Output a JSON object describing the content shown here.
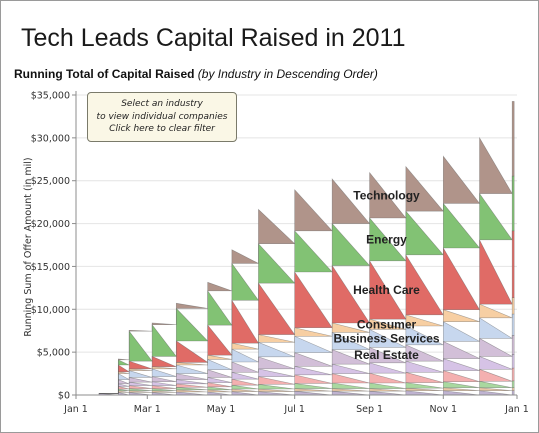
{
  "title": "Tech Leads Capital Raised in 2011",
  "subtitle_bold": "Running Total of Capital Raised",
  "subtitle_italic": "(by Industry in Descending Order)",
  "filter_box": {
    "line1": "Select an industry",
    "line2": "to view individual companies",
    "line3": "Click here to clear filter"
  },
  "chart_data": {
    "type": "area",
    "ylabel": "Running Sum of Offer Amount (in mil)",
    "y_ticks": [
      "$0",
      "$5,000",
      "$10,000",
      "$15,000",
      "$20,000",
      "$25,000",
      "$30,000",
      "$35,000"
    ],
    "y_tick_values": [
      0,
      5000,
      10000,
      15000,
      20000,
      25000,
      30000,
      35000
    ],
    "ylim": [
      0,
      35000
    ],
    "x_ticks": [
      "Jan 1",
      "Mar 1",
      "May 1",
      "Jul 1",
      "Sep 1",
      "Nov 1",
      "Jan 1"
    ],
    "x_tick_dates": [
      "2011-01-01",
      "2011-03-01",
      "2011-05-01",
      "2011-07-01",
      "2011-09-01",
      "2011-11-01",
      "2012-01-01"
    ],
    "xlim": [
      "2011-01-01",
      "2012-01-01"
    ],
    "grid": "horizontal",
    "x": [
      "2011-01-20",
      "2011-02-05",
      "2011-02-14",
      "2011-03-05",
      "2011-03-25",
      "2011-04-20",
      "2011-05-10",
      "2011-06-01",
      "2011-07-01",
      "2011-08-01",
      "2011-09-01",
      "2011-10-01",
      "2011-11-01",
      "2011-12-01",
      "2011-12-28"
    ],
    "series": [
      {
        "name": "",
        "color": "#bfb3d1",
        "values": [
          200,
          300,
          300,
          300,
          350,
          350,
          400,
          400,
          450,
          450,
          450,
          500,
          500,
          500,
          500
        ]
      },
      {
        "name": "",
        "color": "#e8c7a6",
        "values": [
          0,
          200,
          200,
          200,
          250,
          250,
          300,
          300,
          300,
          300,
          300,
          300,
          350,
          350,
          350
        ]
      },
      {
        "name": "",
        "color": "#a9d89f",
        "values": [
          0,
          200,
          250,
          250,
          300,
          350,
          450,
          550,
          600,
          650,
          650,
          650,
          700,
          750,
          800
        ]
      },
      {
        "name": "",
        "color": "#f4b0b0",
        "values": [
          0,
          300,
          350,
          350,
          400,
          500,
          700,
          900,
          1000,
          1100,
          1150,
          1200,
          1300,
          1400,
          1500
        ]
      },
      {
        "name": "",
        "color": "#d6c3e6",
        "values": [
          0,
          300,
          400,
          450,
          500,
          600,
          800,
          900,
          1000,
          1100,
          1200,
          1300,
          1400,
          1500,
          1600
        ]
      },
      {
        "name": "Real Estate",
        "color": "#d2bfd8",
        "values": [
          0,
          500,
          550,
          600,
          700,
          900,
          1200,
          1400,
          1600,
          1700,
          1800,
          1900,
          2000,
          2100,
          2200
        ]
      },
      {
        "name": "Business Services",
        "color": "#c7d7ee",
        "values": [
          0,
          700,
          800,
          900,
          1000,
          1200,
          1500,
          1700,
          1900,
          2000,
          2100,
          2200,
          2300,
          2400,
          2500
        ]
      },
      {
        "name": "Consumer",
        "color": "#f7cfa3",
        "values": [
          0,
          200,
          200,
          250,
          300,
          500,
          700,
          900,
          1000,
          1100,
          1200,
          1300,
          1400,
          1600,
          1900
        ]
      },
      {
        "name": "Health Care",
        "color": "#e06b66",
        "values": [
          0,
          800,
          900,
          1200,
          2500,
          3500,
          5000,
          6000,
          6500,
          6700,
          6800,
          7000,
          7200,
          7500,
          7800
        ]
      },
      {
        "name": "Energy",
        "color": "#82c274",
        "values": [
          0,
          600,
          3500,
          3700,
          3800,
          4000,
          4300,
          4600,
          4800,
          4900,
          5000,
          5100,
          5200,
          5400,
          6400
        ]
      },
      {
        "name": "Technology",
        "color": "#b0948a",
        "values": [
          0,
          100,
          100,
          200,
          600,
          1000,
          1600,
          4000,
          4800,
          5200,
          5300,
          5200,
          5500,
          6500,
          8700
        ]
      }
    ]
  }
}
